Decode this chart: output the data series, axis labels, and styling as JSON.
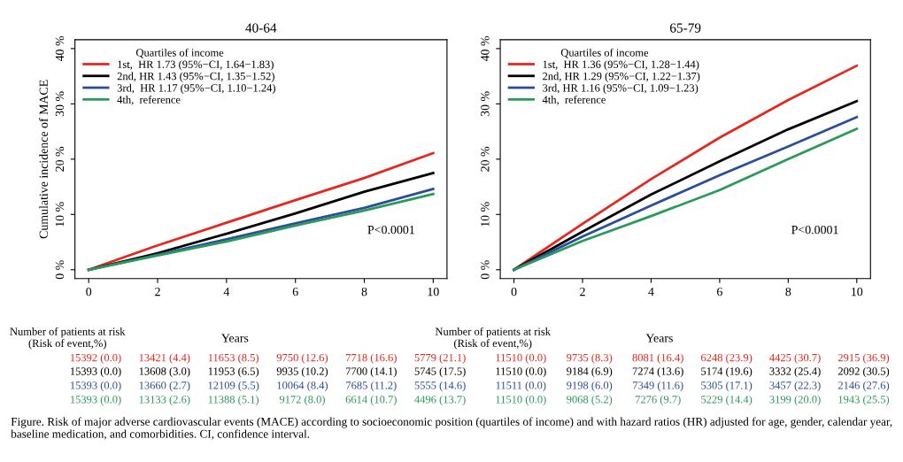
{
  "chart_data": [
    {
      "type": "line",
      "title": "40-64",
      "xlabel": "Years",
      "ylabel": "Cumulative incidence of MACE",
      "legend_title": "Quartiles of income",
      "legend": "top left",
      "grid": false,
      "marker": "none",
      "line_style": "solid",
      "x": [
        0,
        2,
        4,
        6,
        8,
        10
      ],
      "xlim": [
        -0.4,
        10.4
      ],
      "xticks": [
        0,
        2,
        4,
        6,
        8,
        10
      ],
      "ylim": [
        -1.6,
        41.6
      ],
      "yticks": [
        {
          "value": 0,
          "label": "0 %"
        },
        {
          "value": 10,
          "label": "10 %"
        },
        {
          "value": 20,
          "label": "20 %"
        },
        {
          "value": 30,
          "label": "30 %"
        },
        {
          "value": 40,
          "label": "40 %"
        }
      ],
      "series": [
        {
          "name": "1st,  HR 1.73 (95%−CI, 1.64−1.83)",
          "color": "#e8261e",
          "values": [
            0.0,
            4.4,
            8.5,
            12.6,
            16.6,
            21.1
          ]
        },
        {
          "name": "2nd, HR 1.43 (95%−CI, 1.35−1.52)",
          "color": "#000000",
          "values": [
            0.0,
            3.0,
            6.5,
            10.2,
            14.1,
            17.5
          ]
        },
        {
          "name": "3rd,  HR 1.17 (95%−CI, 1.10−1.24)",
          "color": "#2b4e9c",
          "values": [
            0.0,
            2.7,
            5.5,
            8.4,
            11.2,
            14.6
          ]
        },
        {
          "name": "4th,  reference",
          "color": "#2a9a5a",
          "values": [
            0.0,
            2.6,
            5.1,
            8.0,
            10.7,
            13.7
          ]
        }
      ],
      "annotations": [
        "P<0.0001",
        "Number of patients at risk\n(Risk of event,%)",
        "15392 (0.0)",
        "13421 (4.4)",
        "11653 (8.5)",
        "9750 (12.6)",
        "7718 (16.6)",
        "5779 (21.1)",
        "15393 (0.0)",
        "13608 (3.0)",
        "11953 (6.5)",
        "9935 (10.2)",
        "7700 (14.1)",
        "5745 (17.5)",
        "15393 (0.0)",
        "13660 (2.7)",
        "12109 (5.5)",
        "10064 (8.4)",
        "7685 (11.2)",
        "5555 (14.6)",
        "15393 (0.0)",
        "13133 (2.6)",
        "11388 (5.1)",
        "9172 (8.0)",
        "6614 (10.7)",
        "4496 (13.7)",
        "Figure. Risk of major adverse cardiovascular events (MACE) according to socioeconomic position (quartiles of income) and with hazard ratios (HR) adjusted for age, gender, calendar year, baseline medication, and comorbidities. CI, confidence interval."
      ]
    },
    {
      "type": "line",
      "title": "65-79",
      "xlabel": "Years",
      "legend_title": "Quartiles of income",
      "legend": "top left",
      "grid": false,
      "marker": "none",
      "line_style": "solid",
      "x": [
        0,
        2,
        4,
        6,
        8,
        10
      ],
      "xlim": [
        -0.4,
        10.4
      ],
      "xticks": [
        0,
        2,
        4,
        6,
        8,
        10
      ],
      "ylim": [
        -1.6,
        41.6
      ],
      "yticks": [
        {
          "value": 0,
          "label": "0 %"
        },
        {
          "value": 10,
          "label": "10 %"
        },
        {
          "value": 20,
          "label": "20 %"
        },
        {
          "value": 30,
          "label": "30 %"
        },
        {
          "value": 40,
          "label": "40 %"
        }
      ],
      "series": [
        {
          "name": "1st,  HR 1.36 (95%−CI, 1.28−1.44)",
          "color": "#e8261e",
          "values": [
            0.0,
            8.3,
            16.4,
            23.9,
            30.7,
            36.9
          ]
        },
        {
          "name": "2nd, HR 1.29 (95%−CI, 1.22−1.37)",
          "color": "#000000",
          "values": [
            0.0,
            6.9,
            13.6,
            19.6,
            25.4,
            30.5
          ]
        },
        {
          "name": "3rd, HR 1.16 (95%−CI, 1.09−1.23)",
          "color": "#2b4e9c",
          "values": [
            0.0,
            6.0,
            11.6,
            17.1,
            22.3,
            27.6
          ]
        },
        {
          "name": "4th,  reference",
          "color": "#2a9a5a",
          "values": [
            0.0,
            5.2,
            9.7,
            14.4,
            20.0,
            25.5
          ]
        }
      ],
      "annotations": [
        "P<0.0001",
        "Number of patients at risk\n(Risk of event,%)",
        "11510 (0.0)",
        "9735 (8.3)",
        "8081 (16.4)",
        "6248 (23.9)",
        "4425 (30.7)",
        "2915 (36.9)",
        "11510 (0.0)",
        "9184 (6.9)",
        "7274 (13.6)",
        "5174 (19.6)",
        "3332 (25.4)",
        "2092 (30.5)",
        "11511 (0.0)",
        "9198 (6.0)",
        "7349 (11.6)",
        "5305 (17.1)",
        "3457 (22.3)",
        "2146 (27.6)",
        "11510 (0.0)",
        "9068 (5.2)",
        "7276 (9.7)",
        "5229 (14.4)",
        "3199 (20.0)",
        "1943 (25.5)"
      ]
    }
  ]
}
